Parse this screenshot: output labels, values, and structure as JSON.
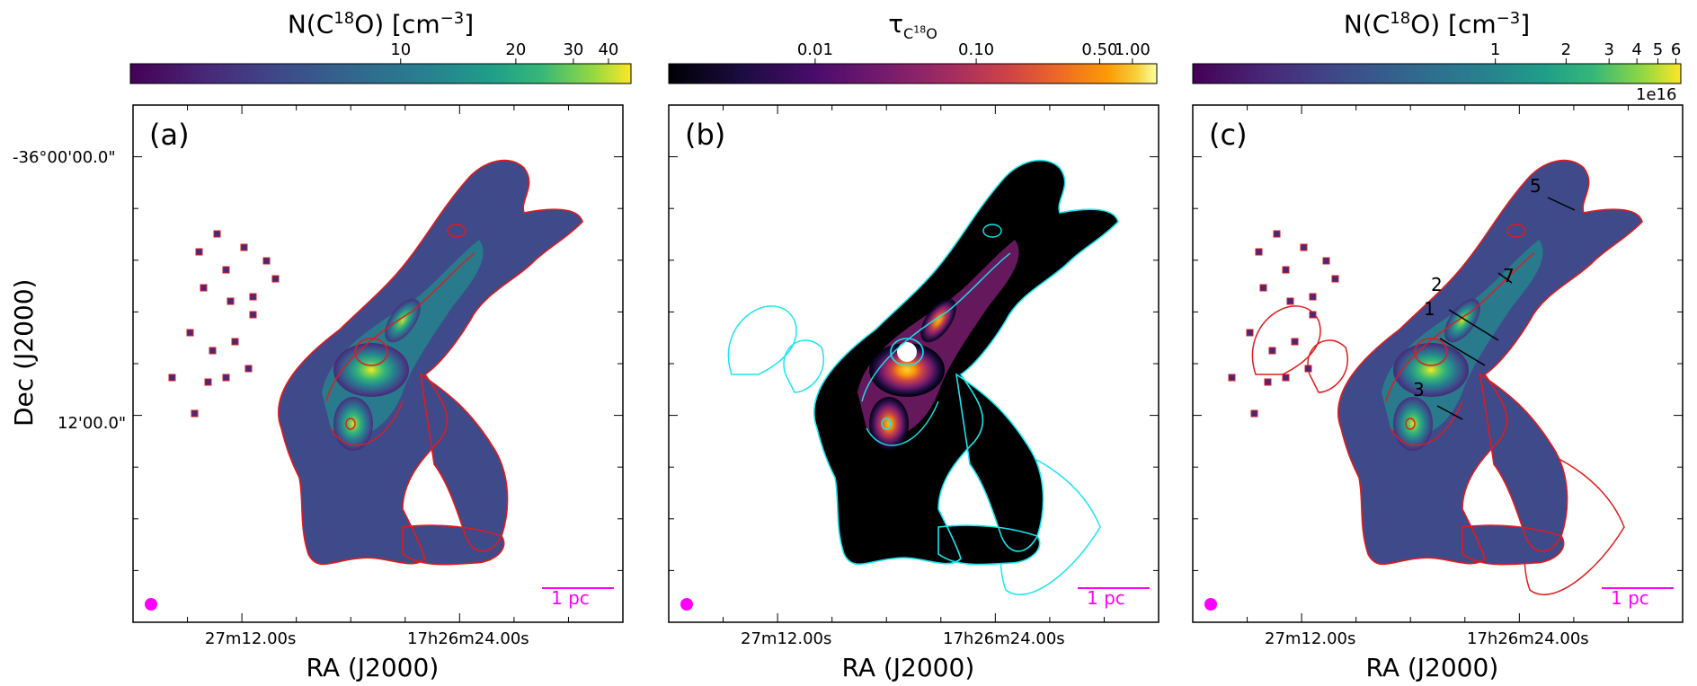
{
  "figure": {
    "colors": {
      "contour_red": "#e31a1c",
      "contour_cyan": "#18e6f0",
      "scale_magenta": "#ff00ff"
    }
  },
  "panels": [
    {
      "letter": "(a)",
      "colorbar": {
        "label_html": "N(C<sup>18</sup>O) [cm<sup>−3</sup>]",
        "cmap": "viridis",
        "ticks": [
          "10",
          "20",
          "30",
          "40"
        ],
        "exponent": ""
      },
      "scale_bar": "1 pc",
      "x_ticks": [
        "27m12.00s",
        "17h26m24.00s"
      ],
      "y_ticks": [
        "-36°00'00.0\"",
        "12'00.0\""
      ],
      "xlabel": "RA (J2000)",
      "ylabel": "Dec (J2000)",
      "contour": "red"
    },
    {
      "letter": "(b)",
      "colorbar": {
        "label_html": "τ<sub style=\"font-size:16px\">C<sup style=\"font-size:11px\">18</sup>O</sub>",
        "cmap": "inferno",
        "ticks": [
          "0.01",
          "0.10",
          "0.50",
          "1.00"
        ],
        "exponent": ""
      },
      "scale_bar": "1 pc",
      "x_ticks": [
        "27m12.00s",
        "17h26m24.00s"
      ],
      "xlabel": "RA (J2000)",
      "contour": "cyan"
    },
    {
      "letter": "(c)",
      "colorbar": {
        "label_html": "N(C<sup>18</sup>O) [cm<sup>−3</sup>]",
        "cmap": "viridis",
        "ticks": [
          "1",
          "2",
          "3",
          "4",
          "5",
          "6"
        ],
        "exponent": "1e16"
      },
      "scale_bar": "1 pc",
      "x_ticks": [
        "27m12.00s",
        "17h26m24.00s"
      ],
      "xlabel": "RA (J2000)",
      "contour": "red",
      "cut_labels": [
        "5",
        "2",
        "7",
        "1",
        "3"
      ]
    }
  ]
}
